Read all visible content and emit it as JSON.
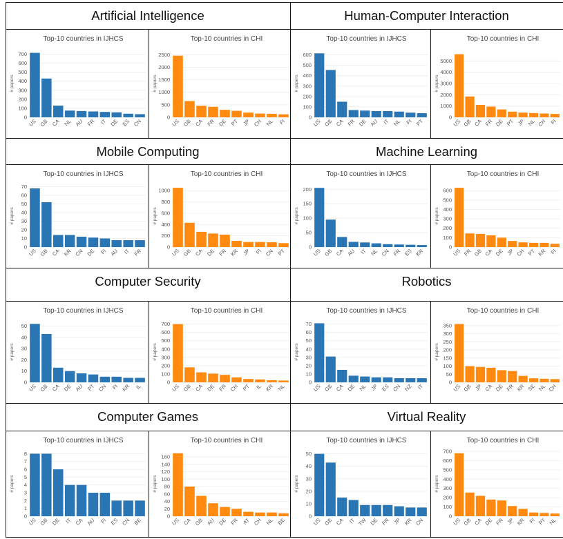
{
  "colors": {
    "ijhcs": "#2a76b5",
    "chi": "#ff8a0f"
  },
  "sections": [
    {
      "title": "Artificial Intelligence"
    },
    {
      "title": "Human-Computer Interaction"
    },
    {
      "title": "Mobile Computing"
    },
    {
      "title": "Machine Learning"
    },
    {
      "title": "Computer Security"
    },
    {
      "title": "Robotics"
    },
    {
      "title": "Computer Games"
    },
    {
      "title": "Virtual Reality"
    }
  ],
  "chart_data": [
    {
      "type": "bar",
      "section": "Artificial Intelligence",
      "title": "Top-10 countries in IJHCS",
      "ylabel": "# papers",
      "color": "ijhcs",
      "categories": [
        "US",
        "GB",
        "CA",
        "NL",
        "AU",
        "FR",
        "IT",
        "DE",
        "ES",
        "CN"
      ],
      "values": [
        715,
        430,
        130,
        75,
        70,
        65,
        60,
        55,
        40,
        35
      ],
      "ylim": [
        0,
        750
      ],
      "yticks": [
        0,
        100,
        200,
        300,
        400,
        500,
        600,
        700
      ]
    },
    {
      "type": "bar",
      "section": "Artificial Intelligence",
      "title": "Top-10 countries in CHI",
      "ylabel": "# papers",
      "color": "chi",
      "categories": [
        "US",
        "GB",
        "CA",
        "FR",
        "DE",
        "PT",
        "JP",
        "CH",
        "NL",
        "FI"
      ],
      "values": [
        2460,
        650,
        460,
        420,
        300,
        260,
        190,
        150,
        140,
        120
      ],
      "ylim": [
        0,
        2700
      ],
      "yticks": [
        0,
        500,
        1000,
        1500,
        2000,
        2500
      ]
    },
    {
      "type": "bar",
      "section": "Human-Computer Interaction",
      "title": "Top-10 countries in IJHCS",
      "ylabel": "# papers",
      "color": "ijhcs",
      "categories": [
        "US",
        "GB",
        "CA",
        "FR",
        "DE",
        "AU",
        "IT",
        "NL",
        "FI",
        "PT"
      ],
      "values": [
        615,
        455,
        150,
        70,
        65,
        60,
        60,
        55,
        45,
        40
      ],
      "ylim": [
        0,
        650
      ],
      "yticks": [
        0,
        100,
        200,
        300,
        400,
        500,
        600
      ]
    },
    {
      "type": "bar",
      "section": "Human-Computer Interaction",
      "title": "Top-10 countries in CHI",
      "ylabel": "# papers",
      "color": "chi",
      "categories": [
        "US",
        "GB",
        "CA",
        "FR",
        "DE",
        "PT",
        "JP",
        "NL",
        "CH",
        "FI"
      ],
      "values": [
        5600,
        1850,
        1100,
        950,
        700,
        500,
        420,
        380,
        340,
        300
      ],
      "ylim": [
        0,
        6000
      ],
      "yticks": [
        0,
        1000,
        2000,
        3000,
        4000,
        5000
      ]
    },
    {
      "type": "bar",
      "section": "Mobile Computing",
      "title": "Top-10 countries in IJHCS",
      "ylabel": "# papers",
      "color": "ijhcs",
      "categories": [
        "US",
        "GB",
        "CA",
        "KR",
        "CN",
        "DE",
        "FI",
        "AU",
        "IT",
        "FR"
      ],
      "values": [
        68,
        52,
        14,
        14,
        12,
        11,
        10,
        8,
        8,
        8
      ],
      "ylim": [
        0,
        72
      ],
      "yticks": [
        0,
        10,
        20,
        30,
        40,
        50,
        60,
        70
      ]
    },
    {
      "type": "bar",
      "section": "Mobile Computing",
      "title": "Top-10 countries in CHI",
      "ylabel": "# papers",
      "color": "chi",
      "categories": [
        "US",
        "GB",
        "CA",
        "DE",
        "FR",
        "KR",
        "JP",
        "FI",
        "CN",
        "PT"
      ],
      "values": [
        1050,
        430,
        270,
        240,
        220,
        110,
        90,
        90,
        85,
        70
      ],
      "ylim": [
        0,
        1100
      ],
      "yticks": [
        0,
        200,
        400,
        600,
        800,
        1000
      ]
    },
    {
      "type": "bar",
      "section": "Machine Learning",
      "title": "Top-10 countries in IJHCS",
      "ylabel": "# papers",
      "color": "ijhcs",
      "categories": [
        "US",
        "GB",
        "CA",
        "AU",
        "IT",
        "NL",
        "CN",
        "FR",
        "ES",
        "KR"
      ],
      "values": [
        205,
        95,
        35,
        18,
        16,
        13,
        10,
        9,
        8,
        7
      ],
      "ylim": [
        0,
        215
      ],
      "yticks": [
        0,
        50,
        100,
        150,
        200
      ]
    },
    {
      "type": "bar",
      "section": "Machine Learning",
      "title": "Top-10 countries in CHI",
      "ylabel": "# papers",
      "color": "chi",
      "categories": [
        "US",
        "FR",
        "GB",
        "CA",
        "DE",
        "JP",
        "CH",
        "PT",
        "KR",
        "FI"
      ],
      "values": [
        630,
        145,
        140,
        125,
        100,
        65,
        50,
        45,
        45,
        35
      ],
      "ylim": [
        0,
        660
      ],
      "yticks": [
        0,
        100,
        200,
        300,
        400,
        500,
        600
      ]
    },
    {
      "type": "bar",
      "section": "Computer Security",
      "title": "Top-10 countries in IJHCS",
      "ylabel": "# papers",
      "color": "ijhcs",
      "categories": [
        "US",
        "GB",
        "CA",
        "DE",
        "AU",
        "PT",
        "CN",
        "FI",
        "KR",
        "IL"
      ],
      "values": [
        52,
        43,
        13,
        10,
        8,
        7,
        5,
        5,
        4,
        4
      ],
      "ylim": [
        0,
        54
      ],
      "yticks": [
        0,
        10,
        20,
        30,
        40,
        50
      ]
    },
    {
      "type": "bar",
      "section": "Computer Security",
      "title": "Top-10 countries in CHI",
      "ylabel": "# papers",
      "color": "chi",
      "categories": [
        "US",
        "GB",
        "CA",
        "DE",
        "FR",
        "CH",
        "PT",
        "IL",
        "KR",
        "NL"
      ],
      "values": [
        700,
        180,
        120,
        105,
        90,
        60,
        40,
        35,
        25,
        22
      ],
      "ylim": [
        0,
        730
      ],
      "yticks": [
        0,
        100,
        200,
        300,
        400,
        500,
        600,
        700
      ]
    },
    {
      "type": "bar",
      "section": "Robotics",
      "title": "Top-10 countries in IJHCS",
      "ylabel": "# papers",
      "color": "ijhcs",
      "categories": [
        "US",
        "GB",
        "CA",
        "DE",
        "NL",
        "JP",
        "ES",
        "CN",
        "NZ",
        "IT"
      ],
      "values": [
        71,
        31,
        15,
        8,
        7,
        6,
        6,
        5,
        5,
        5
      ],
      "ylim": [
        0,
        73
      ],
      "yticks": [
        0,
        10,
        20,
        30,
        40,
        50,
        60,
        70
      ]
    },
    {
      "type": "bar",
      "section": "Robotics",
      "title": "Top-10 countries in CHI",
      "ylabel": "# papers",
      "color": "chi",
      "categories": [
        "US",
        "GB",
        "JP",
        "CA",
        "DE",
        "FR",
        "KR",
        "SE",
        "NL",
        "CH"
      ],
      "values": [
        360,
        100,
        95,
        90,
        75,
        70,
        40,
        25,
        22,
        20
      ],
      "ylim": [
        0,
        375
      ],
      "yticks": [
        0,
        50,
        100,
        150,
        200,
        250,
        300,
        350
      ]
    },
    {
      "type": "bar",
      "section": "Computer Games",
      "title": "Top-10 countries in IJHCS",
      "ylabel": "# papers",
      "color": "ijhcs",
      "categories": [
        "US",
        "GB",
        "DE",
        "IT",
        "CA",
        "AU",
        "FI",
        "ES",
        "CN",
        "BE"
      ],
      "values": [
        8,
        8,
        6,
        4,
        4,
        3,
        3,
        2,
        2,
        2
      ],
      "ylim": [
        0,
        8.3
      ],
      "yticks": [
        0,
        1,
        2,
        3,
        4,
        5,
        6,
        7,
        8
      ]
    },
    {
      "type": "bar",
      "section": "Computer Games",
      "title": "Top-10 countries in CHI",
      "ylabel": "# papers",
      "color": "chi",
      "categories": [
        "US",
        "CA",
        "GB",
        "AU",
        "DE",
        "FR",
        "AT",
        "CH",
        "NL",
        "BE"
      ],
      "values": [
        170,
        80,
        55,
        35,
        25,
        20,
        12,
        10,
        10,
        8
      ],
      "ylim": [
        0,
        175
      ],
      "yticks": [
        0,
        20,
        40,
        60,
        80,
        100,
        120,
        140,
        160
      ]
    },
    {
      "type": "bar",
      "section": "Virtual Reality",
      "title": "Top-10 countries in IJHCS",
      "ylabel": "# papers",
      "color": "ijhcs",
      "categories": [
        "US",
        "GB",
        "CA",
        "IT",
        "TW",
        "DE",
        "FR",
        "JP",
        "KR",
        "CN"
      ],
      "values": [
        50,
        43,
        15,
        13,
        9,
        9,
        9,
        8,
        7,
        7
      ],
      "ylim": [
        0,
        52
      ],
      "yticks": [
        0,
        10,
        20,
        30,
        40,
        50
      ]
    },
    {
      "type": "bar",
      "section": "Virtual Reality",
      "title": "Top-10 countries in CHI",
      "ylabel": "# papers",
      "color": "chi",
      "categories": [
        "US",
        "GB",
        "CA",
        "DE",
        "FR",
        "JP",
        "KR",
        "FI",
        "PT",
        "NL"
      ],
      "values": [
        680,
        255,
        220,
        180,
        170,
        110,
        80,
        40,
        35,
        30
      ],
      "ylim": [
        0,
        700
      ],
      "yticks": [
        0,
        100,
        200,
        300,
        400,
        500,
        600,
        700
      ]
    }
  ]
}
